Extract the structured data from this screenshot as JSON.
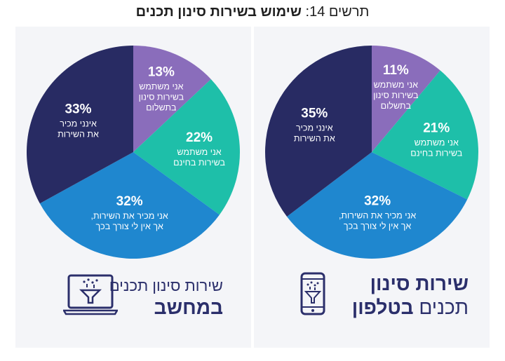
{
  "title": {
    "number": "תרשים 14:",
    "text": "שימוש בשירות סינון תכנים"
  },
  "captions": {
    "phone": {
      "line1": "שירות סינון",
      "line2_plain": "תכנים",
      "line2_bold": "בטלפון"
    },
    "computer": {
      "line1": "שירות סינון תכנים",
      "line2": "במחשב"
    }
  },
  "colors": {
    "uses_paid": "#8a6dbb",
    "uses_free": "#1ebfa9",
    "knows_no_need": "#1f87cf",
    "unaware": "#282b63",
    "caption": "#2b2f6b"
  },
  "chart_data": [
    {
      "type": "pie",
      "name": "phone",
      "slices": [
        {
          "label": "אני משתמש בשירות סינון בתשלום",
          "lines": [
            "אני משתמש",
            "בשירות סינון",
            "בתשלום"
          ],
          "value": 11,
          "display": "11%",
          "color": "#8a6dbb"
        },
        {
          "label": "אני משתמש בשירות בחינם",
          "lines": [
            "אני משתמש",
            "בשירות בחינם"
          ],
          "value": 21,
          "display": "21%",
          "color": "#1ebfa9"
        },
        {
          "label": "אני מכיר את השירות, אך אין לי צורך בכך",
          "lines": [
            "אני מכיר את השירות,",
            "אך אין לי צורך בכך"
          ],
          "value": 32,
          "display": "32%",
          "color": "#1f87cf"
        },
        {
          "label": "אינני מכיר את השירות",
          "lines": [
            "אינני מכיר",
            "את השירות"
          ],
          "value": 35,
          "display": "35%",
          "color": "#282b63"
        }
      ]
    },
    {
      "type": "pie",
      "name": "computer",
      "slices": [
        {
          "label": "אני משתמש בשירות סינון בתשלום",
          "lines": [
            "אני משתמש",
            "בשירות סינון",
            "בתשלום"
          ],
          "value": 13,
          "display": "13%",
          "color": "#8a6dbb"
        },
        {
          "label": "אני משתמש בשירות בחינם",
          "lines": [
            "אני משתמש",
            "בשירות בחינם"
          ],
          "value": 22,
          "display": "22%",
          "color": "#1ebfa9"
        },
        {
          "label": "אני מכיר את השירות, אך אין לי צורך בכך",
          "lines": [
            "אני מכיר את השירות,",
            "אך אין לי צורך בכך"
          ],
          "value": 32,
          "display": "32%",
          "color": "#1f87cf"
        },
        {
          "label": "אינני מכיר את השירות",
          "lines": [
            "אינני מכיר",
            "את השירות"
          ],
          "value": 33,
          "display": "33%",
          "color": "#282b63"
        }
      ]
    }
  ]
}
